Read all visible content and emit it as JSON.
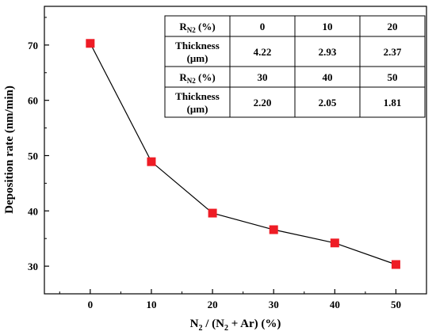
{
  "chart_data": {
    "type": "line",
    "x": [
      0,
      10,
      20,
      30,
      40,
      50
    ],
    "series": [
      {
        "values": [
          70.3,
          48.9,
          39.6,
          36.6,
          34.2,
          30.3
        ],
        "marker": "square",
        "marker_color": "#ee1c25",
        "line_color": "#000000"
      }
    ],
    "xlabel": "N₂ / (N₂ + Ar) (%)",
    "ylabel": "Deposition rate (nm/min)",
    "xlim": [
      -7.5,
      55
    ],
    "ylim": [
      25,
      77
    ],
    "xticks": [
      0,
      10,
      20,
      30,
      40,
      50
    ],
    "yticks": [
      30,
      40,
      50,
      60,
      70
    ],
    "xtick_labels": [
      "0",
      "10",
      "20",
      "30",
      "40",
      "50"
    ],
    "ytick_labels": [
      "30",
      "40",
      "50",
      "60",
      "70"
    ],
    "grid": false,
    "inset_table": {
      "rows": [
        {
          "header": "R",
          "header_sub": "N2",
          "header_tail": " (%)",
          "values": [
            "0",
            "10",
            "20"
          ]
        },
        {
          "header_line1": "Thickness",
          "header_line2": "(μm)",
          "values": [
            "4.22",
            "2.93",
            "2.37"
          ]
        },
        {
          "header": "R",
          "header_sub": "N2",
          "header_tail": " (%)",
          "values": [
            "30",
            "40",
            "50"
          ]
        },
        {
          "header_line1": "Thickness",
          "header_line2": "(μm)",
          "values": [
            "2.20",
            "2.05",
            "1.81"
          ]
        }
      ]
    }
  }
}
